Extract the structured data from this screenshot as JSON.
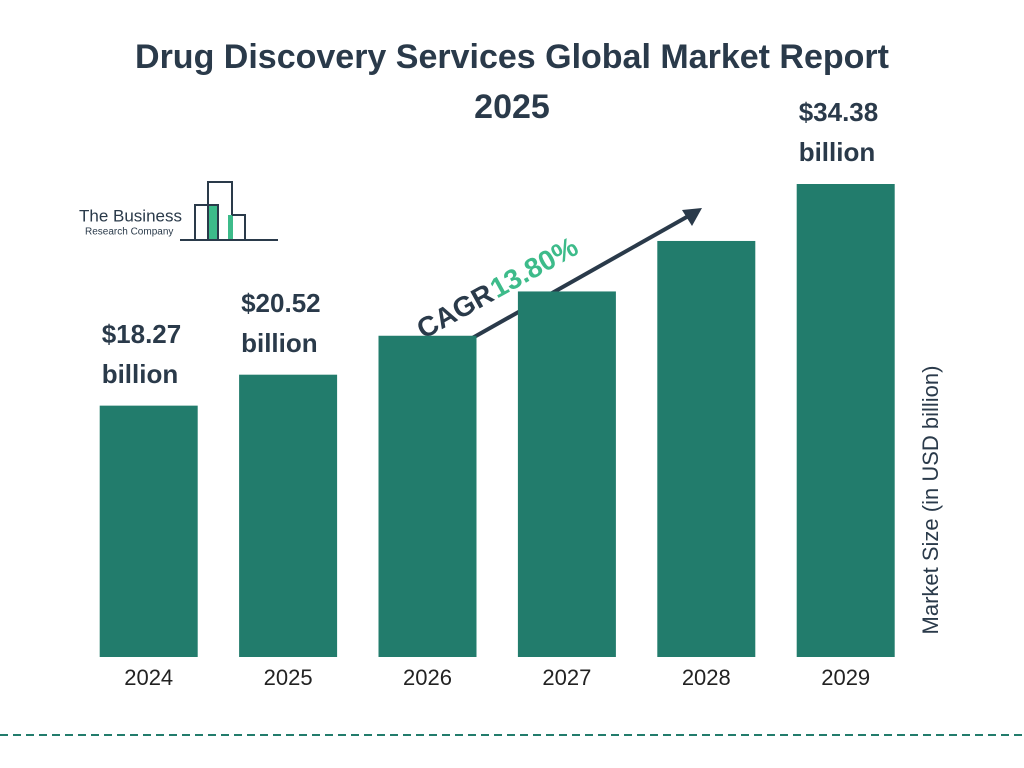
{
  "chart_data": {
    "type": "bar",
    "title": "Drug Discovery Services Global Market Report 2025",
    "categories": [
      "2024",
      "2025",
      "2026",
      "2027",
      "2028",
      "2029"
    ],
    "values": [
      18.27,
      20.52,
      23.35,
      26.57,
      30.24,
      34.38
    ],
    "value_labels": [
      "$18.27 billion",
      "$20.52 billion",
      null,
      null,
      null,
      "$34.38 billion"
    ],
    "color": "#227c6c",
    "y_axis_label": "Market Size (in USD billion)",
    "annotation": {
      "label": "CAGR",
      "value": "13.80%"
    }
  },
  "logo": {
    "line1": "The Business",
    "line2": "Research Company"
  }
}
